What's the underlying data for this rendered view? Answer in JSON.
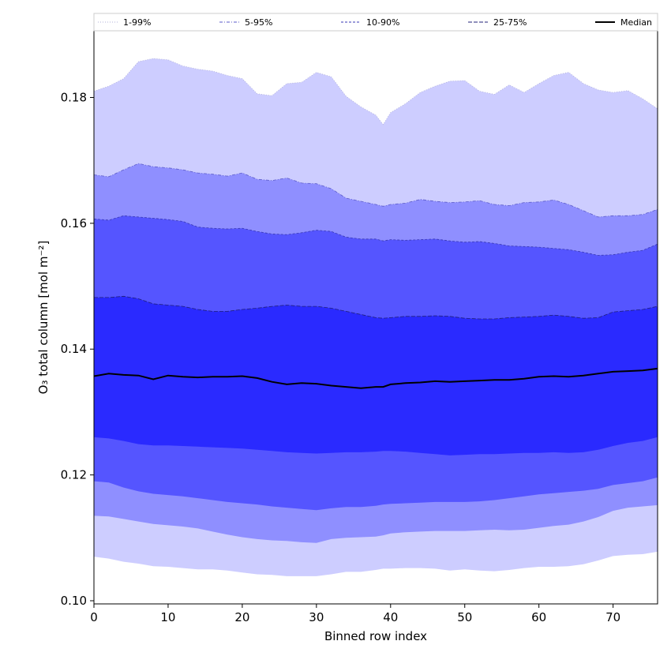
{
  "chart_data": {
    "type": "area",
    "xlabel": "Binned row index",
    "ylabel": "O₃ total column [mol m⁻²]",
    "xlim": [
      0,
      76
    ],
    "ylim": [
      0.0995,
      0.1906
    ],
    "xticks": [
      0,
      10,
      20,
      30,
      40,
      50,
      60,
      70
    ],
    "yticks": [
      0.1,
      0.12,
      0.14,
      0.16,
      0.18
    ],
    "ytick_labels": [
      "0.10",
      "0.12",
      "0.14",
      "0.16",
      "0.18"
    ],
    "legend_position": "top (above plot, single row)",
    "x": [
      0,
      2,
      4,
      6,
      8,
      10,
      12,
      14,
      16,
      18,
      20,
      22,
      24,
      26,
      28,
      30,
      32,
      34,
      36,
      38,
      39,
      40,
      42,
      44,
      46,
      48,
      50,
      52,
      54,
      56,
      58,
      60,
      62,
      64,
      66,
      68,
      70,
      72,
      74,
      76
    ],
    "bands": [
      {
        "name": "1-99%",
        "color": "#cdcdff",
        "edge": "#b0b0d8",
        "dash": "dotted",
        "lower": [
          0.107,
          0.1067,
          0.1062,
          0.1059,
          0.1055,
          0.1054,
          0.1052,
          0.105,
          0.105,
          0.1048,
          0.1045,
          0.1042,
          0.1041,
          0.1039,
          0.1039,
          0.1039,
          0.1042,
          0.1046,
          0.1046,
          0.1049,
          0.1051,
          0.1051,
          0.1052,
          0.1052,
          0.1051,
          0.1048,
          0.105,
          0.1048,
          0.1047,
          0.1049,
          0.1052,
          0.1054,
          0.1054,
          0.1055,
          0.1058,
          0.1064,
          0.1071,
          0.1073,
          0.1074,
          0.1078
        ],
        "upper": [
          0.181,
          0.1818,
          0.183,
          0.1857,
          0.1862,
          0.186,
          0.185,
          0.1845,
          0.1842,
          0.1835,
          0.183,
          0.1806,
          0.1803,
          0.1822,
          0.1824,
          0.184,
          0.1833,
          0.1802,
          0.1785,
          0.1772,
          0.1757,
          0.1776,
          0.179,
          0.1808,
          0.1818,
          0.1826,
          0.1827,
          0.181,
          0.1805,
          0.182,
          0.1808,
          0.1822,
          0.1835,
          0.184,
          0.1822,
          0.1812,
          0.1808,
          0.1811,
          0.1798,
          0.1782
        ]
      },
      {
        "name": "5-95%",
        "color": "#8f8fff",
        "edge": "#5b5bc9",
        "dash": "dashdot",
        "lower": [
          0.1135,
          0.1134,
          0.113,
          0.1126,
          0.1122,
          0.112,
          0.1118,
          0.1115,
          0.111,
          0.1105,
          0.1101,
          0.1098,
          0.1096,
          0.1095,
          0.1093,
          0.1092,
          0.1098,
          0.11,
          0.1101,
          0.1102,
          0.1104,
          0.1107,
          0.1109,
          0.111,
          0.1111,
          0.1111,
          0.1111,
          0.1112,
          0.1113,
          0.1112,
          0.1113,
          0.1116,
          0.1119,
          0.1121,
          0.1126,
          0.1133,
          0.1143,
          0.1148,
          0.115,
          0.1152
        ],
        "upper": [
          0.1677,
          0.1674,
          0.1685,
          0.1695,
          0.169,
          0.1688,
          0.1685,
          0.168,
          0.1678,
          0.1675,
          0.168,
          0.167,
          0.1668,
          0.1672,
          0.1664,
          0.1663,
          0.1655,
          0.164,
          0.1635,
          0.163,
          0.1627,
          0.163,
          0.1632,
          0.1638,
          0.1635,
          0.1633,
          0.1634,
          0.1636,
          0.163,
          0.1628,
          0.1633,
          0.1634,
          0.1637,
          0.163,
          0.162,
          0.161,
          0.1612,
          0.1612,
          0.1614,
          0.1622
        ]
      },
      {
        "name": "10-90%",
        "color": "#5555ff",
        "edge": "#3a3ab5",
        "dash": "dashed",
        "lower": [
          0.119,
          0.1188,
          0.118,
          0.1174,
          0.117,
          0.1168,
          0.1166,
          0.1163,
          0.116,
          0.1157,
          0.1155,
          0.1153,
          0.115,
          0.1148,
          0.1146,
          0.1144,
          0.1147,
          0.1149,
          0.1149,
          0.1151,
          0.1153,
          0.1154,
          0.1155,
          0.1156,
          0.1157,
          0.1157,
          0.1157,
          0.1158,
          0.116,
          0.1163,
          0.1166,
          0.1169,
          0.1171,
          0.1173,
          0.1175,
          0.1178,
          0.1184,
          0.1187,
          0.119,
          0.1196
        ],
        "upper": [
          0.1607,
          0.1605,
          0.1612,
          0.161,
          0.1608,
          0.1606,
          0.1603,
          0.1594,
          0.1592,
          0.1591,
          0.1592,
          0.1587,
          0.1583,
          0.1582,
          0.1585,
          0.1589,
          0.1587,
          0.1578,
          0.1575,
          0.1575,
          0.1572,
          0.1574,
          0.1573,
          0.1574,
          0.1575,
          0.1572,
          0.157,
          0.1571,
          0.1568,
          0.1564,
          0.1563,
          0.1562,
          0.156,
          0.1558,
          0.1554,
          0.1549,
          0.155,
          0.1554,
          0.1557,
          0.1567
        ]
      },
      {
        "name": "25-75%",
        "color": "#2a2aff",
        "edge": "#20207a",
        "dash": "dashed-long",
        "lower": [
          0.126,
          0.1258,
          0.1254,
          0.1249,
          0.1247,
          0.1247,
          0.1246,
          0.1245,
          0.1244,
          0.1243,
          0.1242,
          0.124,
          0.1238,
          0.1236,
          0.1235,
          0.1234,
          0.1235,
          0.1236,
          0.1236,
          0.1237,
          0.1238,
          0.1238,
          0.1237,
          0.1235,
          0.1233,
          0.1231,
          0.1232,
          0.1233,
          0.1233,
          0.1234,
          0.1235,
          0.1235,
          0.1236,
          0.1235,
          0.1236,
          0.124,
          0.1246,
          0.1251,
          0.1254,
          0.126
        ],
        "upper": [
          0.1482,
          0.1482,
          0.1484,
          0.148,
          0.1472,
          0.147,
          0.1468,
          0.1463,
          0.146,
          0.146,
          0.1463,
          0.1465,
          0.1468,
          0.147,
          0.1468,
          0.1468,
          0.1465,
          0.146,
          0.1455,
          0.145,
          0.1449,
          0.145,
          0.1452,
          0.1452,
          0.1453,
          0.1452,
          0.1449,
          0.1448,
          0.1448,
          0.145,
          0.1451,
          0.1452,
          0.1454,
          0.1452,
          0.1449,
          0.145,
          0.1459,
          0.1461,
          0.1463,
          0.1468
        ]
      }
    ],
    "median": {
      "name": "Median",
      "color": "#000000",
      "values": [
        0.1357,
        0.1361,
        0.1359,
        0.1358,
        0.1352,
        0.1358,
        0.1356,
        0.1355,
        0.1356,
        0.1356,
        0.1357,
        0.1354,
        0.1348,
        0.1344,
        0.1346,
        0.1345,
        0.1342,
        0.134,
        0.1338,
        0.134,
        0.134,
        0.1344,
        0.1346,
        0.1347,
        0.1349,
        0.1348,
        0.1349,
        0.135,
        0.1351,
        0.1351,
        0.1353,
        0.1356,
        0.1357,
        0.1356,
        0.1358,
        0.1361,
        0.1364,
        0.1365,
        0.1366,
        0.1369
      ]
    }
  }
}
